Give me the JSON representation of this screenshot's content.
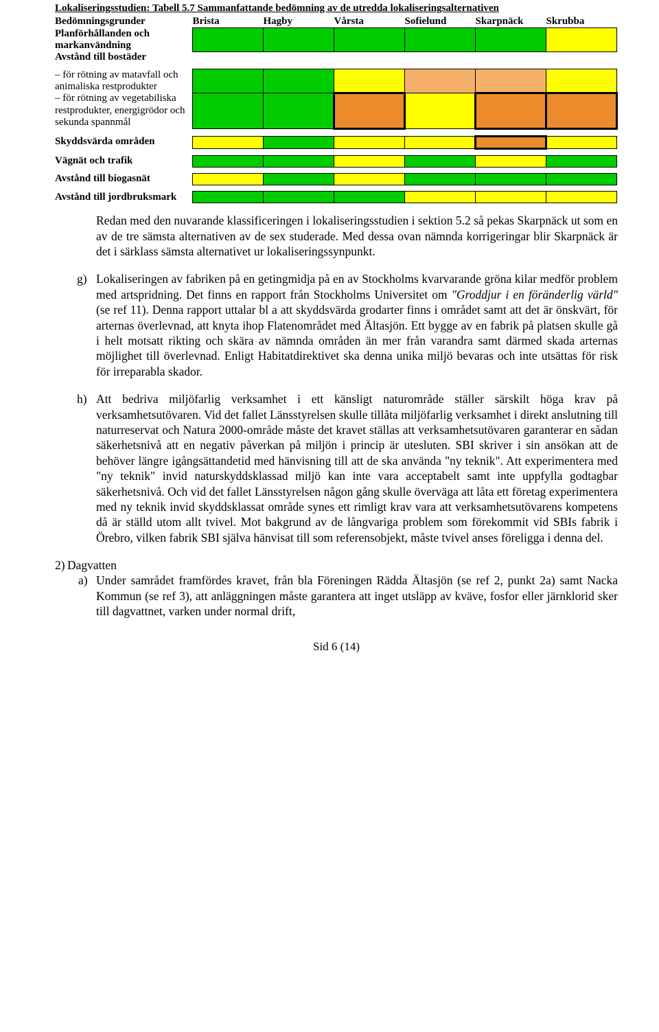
{
  "colors": {
    "green": "#00cc00",
    "yellow": "#ffff00",
    "lightorange": "#f4b06a",
    "orange": "#ec8b2c",
    "white": "#ffffff"
  },
  "table": {
    "title": "Lokaliseringsstudien: Tabell 5.7 Sammanfattande bedömning av de utredda lokaliseringsalternativen",
    "header_label": "Bedömningsgrunder",
    "columns": [
      "Brista",
      "Hagby",
      "Vårsta",
      "Sofielund",
      "Skarpnäck",
      "Skrubba"
    ],
    "rows": [
      {
        "label": "Planförhållanden och markanvändning",
        "bold": true,
        "cells": [
          "green",
          "green",
          "green",
          "green",
          "green",
          "yellow"
        ],
        "thick": [
          false,
          false,
          false,
          false,
          false,
          false
        ]
      },
      {
        "label": "Avstånd till bostäder",
        "bold": true,
        "cells": [
          "white",
          "white",
          "white",
          "white",
          "white",
          "white"
        ],
        "thick": [
          false,
          false,
          false,
          false,
          false,
          false
        ],
        "noFill": true
      },
      {
        "label": "– för rötning av matavfall och animaliska restprodukter",
        "bold": false,
        "cells": [
          "green",
          "green",
          "yellow",
          "lightorange",
          "lightorange",
          "yellow"
        ],
        "thick": [
          false,
          false,
          false,
          false,
          false,
          false
        ],
        "sep": true
      },
      {
        "label": "– för rötning av vegetabiliska restprodukter, energigrödor och sekunda spannmål",
        "bold": false,
        "cells": [
          "green",
          "green",
          "orange",
          "yellow",
          "orange",
          "orange"
        ],
        "thick": [
          false,
          false,
          true,
          false,
          true,
          true
        ]
      },
      {
        "label": "Skyddsvärda områden",
        "bold": true,
        "cells": [
          "yellow",
          "green",
          "yellow",
          "yellow",
          "orange",
          "yellow"
        ],
        "thick": [
          false,
          false,
          false,
          false,
          true,
          false
        ],
        "sep": true
      },
      {
        "label": "Vägnät och trafik",
        "bold": true,
        "cells": [
          "green",
          "green",
          "yellow",
          "green",
          "yellow",
          "green"
        ],
        "thick": [
          false,
          false,
          false,
          false,
          false,
          false
        ],
        "sep": true
      },
      {
        "label": "Avstånd till biogasnät",
        "bold": true,
        "cells": [
          "yellow",
          "green",
          "yellow",
          "green",
          "green",
          "green"
        ],
        "thick": [
          false,
          false,
          false,
          false,
          false,
          false
        ],
        "sep": true
      },
      {
        "label": "Avstånd till jordbruksmark",
        "bold": true,
        "cells": [
          "green",
          "green",
          "green",
          "yellow",
          "yellow",
          "yellow"
        ],
        "thick": [
          false,
          false,
          false,
          false,
          false,
          false
        ],
        "sep": true
      }
    ]
  },
  "para1": "Redan med den nuvarande klassificeringen i lokaliseringsstudien i sektion 5.2 så pekas Skarpnäck ut som en av de tre sämsta alternativen av de sex studerade. Med dessa ovan nämnda korrigeringar blir Skarpnäck är det i särklass sämsta alternativet ur lokaliseringssynpunkt.",
  "para_g": "Lokaliseringen av fabriken på en getingmidja på en av Stockholms kvarvarande gröna kilar medför problem med artspridning. Det finns en rapport från Stockholms Universitet om \"Groddjur i en föränderlig värld\" (se ref 11). Denna rapport uttalar bl a att skyddsvärda grodarter finns i området samt att det är önskvärt, för arternas överlevnad, att knyta ihop Flatenområdet med Ältasjön. Ett bygge av en fabrik på platsen skulle gå i helt motsatt rikting och skära av nämnda områden än mer från varandra samt därmed skada arternas möjlighet till överlevnad. Enligt Habitatdirektivet ska denna unika miljö bevaras och inte utsättas för risk för irreparabla skador.",
  "para_g_italic": "\"Groddjur i en föränderlig värld\"",
  "g_letter": "g)",
  "para_h": "Att bedriva miljöfarlig verksamhet i ett känsligt naturområde ställer särskilt höga krav på verksamhetsutövaren. Vid det fallet Länsstyrelsen skulle tillåta miljöfarlig verksamhet i direkt anslutning till naturreservat och Natura 2000-område måste det kravet ställas att verksamhetsutövaren garanterar en sådan säkerhetsnivå att en negativ påverkan på miljön i princip är utesluten. SBI skriver i sin ansökan att de behöver längre igångsättandetid med hänvisning till att de ska använda \"ny teknik\". Att experimentera med \"ny teknik\" invid naturskyddsklassad miljö kan inte vara acceptabelt samt inte uppfylla godtagbar säkerhetsnivå. Och vid det fallet Länsstyrelsen någon gång skulle överväga att låta ett företag experimentera med ny teknik invid skyddsklassat område synes ett rimligt krav vara att verksamhetsutövarens kompetens då är ställd utom allt tvivel. Mot bakgrund av de långvariga problem som förekommit vid SBIs fabrik i Örebro, vilken fabrik SBI själva hänvisat till som referensobjekt, måste tvivel anses föreligga i denna del.",
  "h_letter": "h)",
  "section2_num": "2)",
  "section2_label": "Dagvatten",
  "para_2a": "Under samrådet framfördes kravet, från bla Föreningen Rädda Ältasjön (se ref 2, punkt 2a) samt Nacka Kommun (se ref 3), att anläggningen måste garantera att inget utsläpp av kväve, fosfor eller järnklorid sker till dagvattnet, varken under normal drift,",
  "a_letter": "a)",
  "footer": "Sid 6 (14)"
}
